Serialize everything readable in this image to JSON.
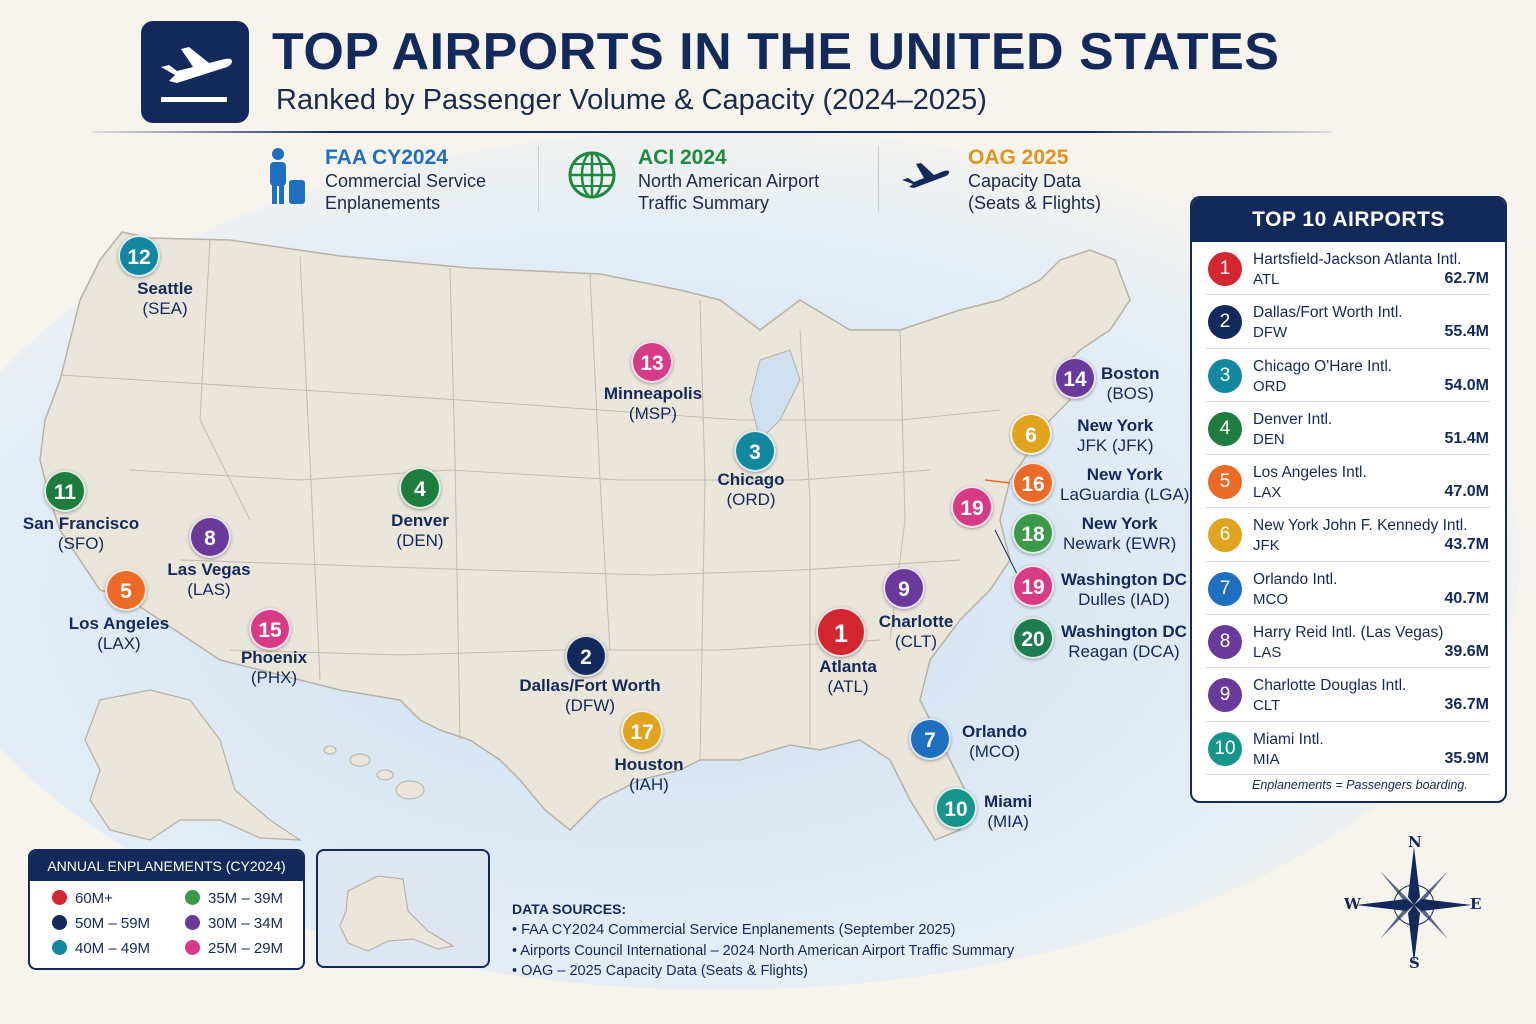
{
  "header": {
    "title": "TOP AIRPORTS IN THE UNITED STATES",
    "subtitle": "Ranked by Passenger Volume & Capacity (2024–2025)"
  },
  "sources_row": [
    {
      "title": "FAA CY2024",
      "line1": "Commercial Service",
      "line2": "Enplanements",
      "color": "#1f6fc1",
      "icon": "traveler-icon"
    },
    {
      "title": "ACI 2024",
      "line1": "North American Airport",
      "line2": "Traffic Summary",
      "color": "#1e8a3e",
      "icon": "globe-icon"
    },
    {
      "title": "OAG 2025",
      "line1": "Capacity Data",
      "line2": "(Seats & Flights)",
      "color": "#e0931e",
      "icon": "airplane-icon"
    }
  ],
  "map_airports": [
    {
      "rank": "1",
      "name": "Atlanta",
      "code": "(ATL)",
      "color": "#d22630"
    },
    {
      "rank": "2",
      "name": "Dallas/Fort Worth",
      "code": "(DFW)",
      "color": "#13295a"
    },
    {
      "rank": "3",
      "name": "Chicago",
      "code": "(ORD)",
      "color": "#1487a0"
    },
    {
      "rank": "4",
      "name": "Denver",
      "code": "(DEN)",
      "color": "#1e7d3e"
    },
    {
      "rank": "5",
      "name": "Los Angeles",
      "code": "(LAX)",
      "color": "#ec6a28"
    },
    {
      "rank": "6",
      "name": "New York",
      "code": "JFK (JFK)",
      "color": "#e0a41e"
    },
    {
      "rank": "7",
      "name": "Orlando",
      "code": "(MCO)",
      "color": "#1f6fc1"
    },
    {
      "rank": "8",
      "name": "Las Vegas",
      "code": "(LAS)",
      "color": "#6a3a9a"
    },
    {
      "rank": "9",
      "name": "Charlotte",
      "code": "(CLT)",
      "color": "#6a3a9a"
    },
    {
      "rank": "10",
      "name": "Miami",
      "code": "(MIA)",
      "color": "#16958a"
    },
    {
      "rank": "11",
      "name": "San Francisco",
      "code": "(SFO)",
      "color": "#1e7d3e"
    },
    {
      "rank": "12",
      "name": "Seattle",
      "code": "(SEA)",
      "color": "#1487a0"
    },
    {
      "rank": "13",
      "name": "Minneapolis",
      "code": "(MSP)",
      "color": "#d83b86"
    },
    {
      "rank": "14",
      "name": "Boston",
      "code": "(BOS)",
      "color": "#6a3a9a"
    },
    {
      "rank": "15",
      "name": "Phoenix",
      "code": "(PHX)",
      "color": "#d83b86"
    },
    {
      "rank": "16",
      "name": "New York",
      "code": "LaGuardia (LGA)",
      "color": "#ec6a28"
    },
    {
      "rank": "17",
      "name": "Houston",
      "code": "(IAH)",
      "color": "#e0a41e"
    },
    {
      "rank": "18",
      "name": "New York",
      "code": "Newark (EWR)",
      "color": "#3a9a4a"
    },
    {
      "rank": "19",
      "name": "Washington DC",
      "code": "Dulles (IAD)",
      "color": "#d83b86"
    },
    {
      "rank": "19",
      "name": "",
      "code": "",
      "color": "#d83b86"
    },
    {
      "rank": "20",
      "name": "Washington DC",
      "code": "Reagan (DCA)",
      "color": "#1e7d4e"
    }
  ],
  "top10": {
    "heading": "TOP 10 AIRPORTS",
    "rows": [
      {
        "rank": "1",
        "name": "Hartsfield-Jackson Atlanta Intl.",
        "code": "ATL",
        "value": "62.7M",
        "color": "#d22630"
      },
      {
        "rank": "2",
        "name": "Dallas/Fort Worth Intl.",
        "code": "DFW",
        "value": "55.4M",
        "color": "#13295a"
      },
      {
        "rank": "3",
        "name": "Chicago O'Hare Intl.",
        "code": "ORD",
        "value": "54.0M",
        "color": "#1487a0"
      },
      {
        "rank": "4",
        "name": "Denver Intl.",
        "code": "DEN",
        "value": "51.4M",
        "color": "#1e7d3e"
      },
      {
        "rank": "5",
        "name": "Los Angeles Intl.",
        "code": "LAX",
        "value": "47.0M",
        "color": "#ec6a28"
      },
      {
        "rank": "6",
        "name": "New York John F. Kennedy Intl.",
        "code": "JFK",
        "value": "43.7M",
        "color": "#e0a41e"
      },
      {
        "rank": "7",
        "name": "Orlando Intl.",
        "code": "MCO",
        "value": "40.7M",
        "color": "#1f6fc1"
      },
      {
        "rank": "8",
        "name": "Harry Reid Intl. (Las Vegas)",
        "code": "LAS",
        "value": "39.6M",
        "color": "#6a3a9a"
      },
      {
        "rank": "9",
        "name": "Charlotte Douglas Intl.",
        "code": "CLT",
        "value": "36.7M",
        "color": "#6a3a9a"
      },
      {
        "rank": "10",
        "name": "Miami Intl.",
        "code": "MIA",
        "value": "35.9M",
        "color": "#16958a"
      }
    ],
    "note": "Enplanements = Passengers boarding."
  },
  "legend": {
    "heading": "ANNUAL ENPLANEMENTS (CY2024)",
    "items": [
      {
        "label": "60M+",
        "color": "#d22630"
      },
      {
        "label": "35M – 39M",
        "color": "#3a9a4a"
      },
      {
        "label": "50M – 59M",
        "color": "#13295a"
      },
      {
        "label": "30M – 34M",
        "color": "#6a3a9a"
      },
      {
        "label": "40M – 49M",
        "color": "#1487a0"
      },
      {
        "label": "25M – 29M",
        "color": "#d83b86"
      }
    ]
  },
  "data_sources": {
    "heading": "DATA SOURCES:",
    "lines": [
      "• FAA CY2024 Commercial Service Enplanements (September 2025)",
      "• Airports Council International – 2024 North American Airport Traffic Summary",
      "• OAG – 2025 Capacity Data (Seats & Flights)"
    ]
  },
  "compass": {
    "n": "N",
    "s": "S",
    "e": "E",
    "w": "W"
  }
}
